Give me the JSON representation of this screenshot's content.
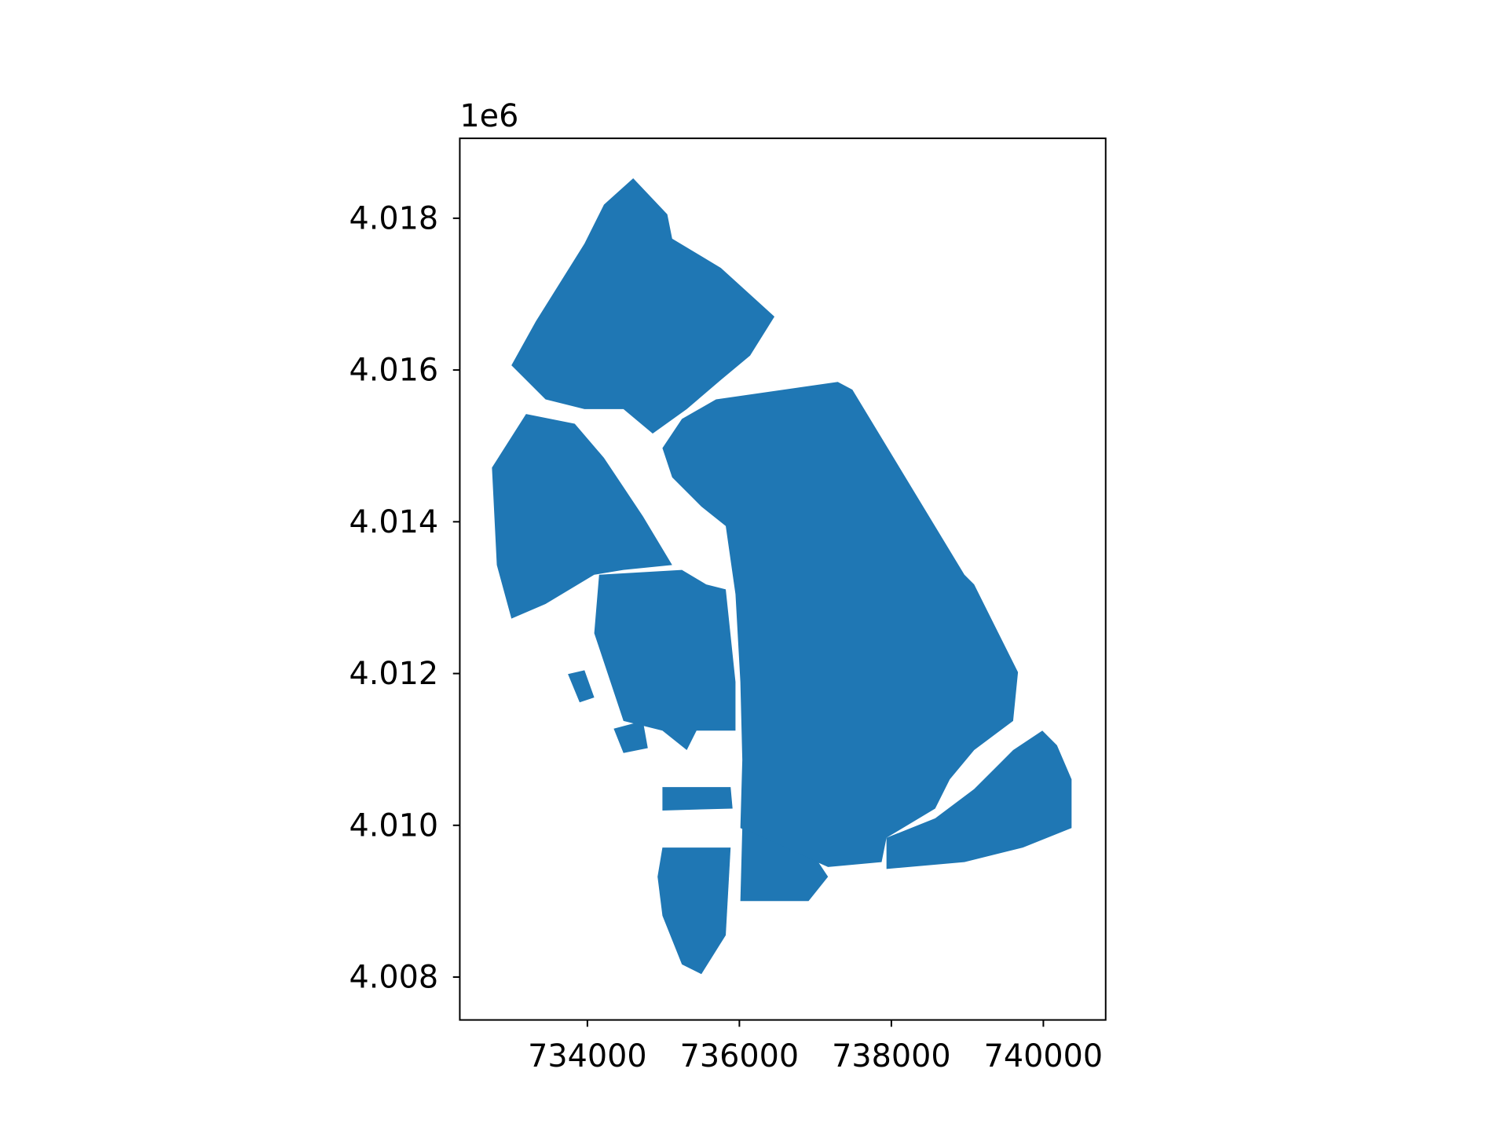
{
  "chart_data": {
    "type": "map",
    "color": "#1f77b4",
    "xlim": [
      732321,
      740820
    ],
    "ylim": [
      4007435,
      4019053
    ],
    "xticks": [
      734000,
      736000,
      738000,
      740000
    ],
    "yticks": [
      {
        "value": 4008000,
        "label": "4.008"
      },
      {
        "value": 4010000,
        "label": "4.010"
      },
      {
        "value": 4012000,
        "label": "4.012"
      },
      {
        "value": 4014000,
        "label": "4.014"
      },
      {
        "value": 4016000,
        "label": "4.016"
      },
      {
        "value": 4018000,
        "label": "4.018"
      }
    ],
    "y_offset_text": "1e6"
  }
}
